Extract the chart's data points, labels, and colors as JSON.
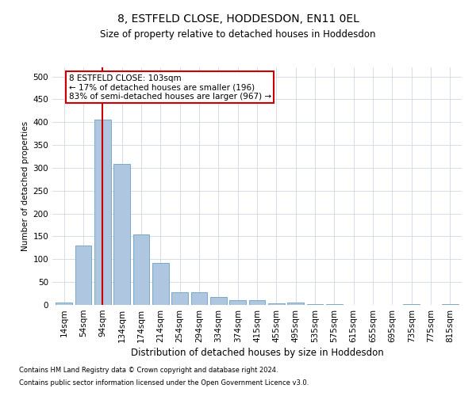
{
  "title": "8, ESTFELD CLOSE, HODDESDON, EN11 0EL",
  "subtitle": "Size of property relative to detached houses in Hoddesdon",
  "xlabel": "Distribution of detached houses by size in Hoddesdon",
  "ylabel": "Number of detached properties",
  "footnote1": "Contains HM Land Registry data © Crown copyright and database right 2024.",
  "footnote2": "Contains public sector information licensed under the Open Government Licence v3.0.",
  "bar_color": "#aec6df",
  "bar_edge_color": "#7aaac8",
  "vline_color": "#cc0000",
  "vline_x": 2.0,
  "annotation_line1": "8 ESTFELD CLOSE: 103sqm",
  "annotation_line2": "← 17% of detached houses are smaller (196)",
  "annotation_line3": "83% of semi-detached houses are larger (967) →",
  "annotation_box_color": "#cc0000",
  "categories": [
    "14sqm",
    "54sqm",
    "94sqm",
    "134sqm",
    "174sqm",
    "214sqm",
    "254sqm",
    "294sqm",
    "334sqm",
    "374sqm",
    "415sqm",
    "455sqm",
    "495sqm",
    "535sqm",
    "575sqm",
    "615sqm",
    "655sqm",
    "695sqm",
    "735sqm",
    "775sqm",
    "815sqm"
  ],
  "values": [
    5,
    130,
    405,
    308,
    155,
    92,
    28,
    28,
    18,
    10,
    10,
    4,
    5,
    1,
    1,
    0,
    0,
    0,
    1,
    0,
    1
  ],
  "ylim": [
    0,
    520
  ],
  "yticks": [
    0,
    50,
    100,
    150,
    200,
    250,
    300,
    350,
    400,
    450,
    500
  ],
  "background_color": "#ffffff",
  "grid_color": "#d0d8e8",
  "title_fontsize": 10,
  "subtitle_fontsize": 8.5,
  "xlabel_fontsize": 8.5,
  "ylabel_fontsize": 7.5,
  "tick_fontsize": 7.5,
  "annot_fontsize": 7.5,
  "footnote_fontsize": 6.0
}
